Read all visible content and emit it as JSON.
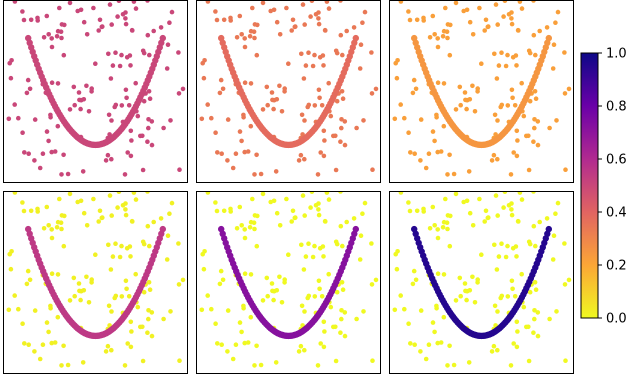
{
  "chart_data": {
    "type": "scatter",
    "title": "",
    "layout": "2 rows x 3 columns of scatter panels sharing one colorbar",
    "axes": {
      "ticks_visible": false,
      "grid": false,
      "xlim": [
        -1.1,
        1.1
      ],
      "ylim": [
        -0.1,
        1.1
      ]
    },
    "curve": {
      "shape": "parabola",
      "x_range": [
        -0.8,
        0.8
      ],
      "vertex": [
        0,
        0.15
      ]
    },
    "colormap": {
      "name": "plasma (reversed)",
      "range": [
        0.0,
        1.0
      ],
      "tick_labels": [
        "0.0",
        "0.2",
        "0.4",
        "0.6",
        "0.8",
        "1.0"
      ],
      "stops": [
        "#f0f921",
        "#fca636",
        "#e16462",
        "#b12a90",
        "#6a00a8",
        "#0d0887"
      ]
    },
    "panels": [
      {
        "noise_value": 0.5,
        "curve_value": 0.5
      },
      {
        "noise_value": 0.34,
        "curve_value": 0.38
      },
      {
        "noise_value": 0.22,
        "curve_value": 0.25
      },
      {
        "noise_value": 0.02,
        "curve_value": 0.55
      },
      {
        "noise_value": 0.0,
        "curve_value": 0.72
      },
      {
        "noise_value": 0.0,
        "curve_value": 0.95
      }
    ]
  }
}
